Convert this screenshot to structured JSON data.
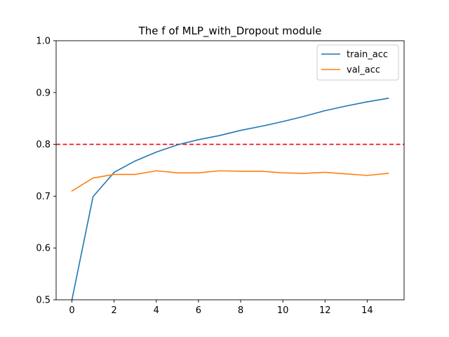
{
  "chart_data": {
    "type": "line",
    "title": "The f of MLP_with_Dropout module",
    "xlabel": "",
    "ylabel": "",
    "xlim": [
      -0.75,
      15.75
    ],
    "ylim": [
      0.5,
      1.0
    ],
    "xticks": [
      0,
      2,
      4,
      6,
      8,
      10,
      12,
      14
    ],
    "yticks": [
      0.5,
      0.6,
      0.7,
      0.8,
      0.9,
      1.0
    ],
    "grid": false,
    "legend_position": "top-right",
    "x": [
      0,
      1,
      2,
      3,
      4,
      5,
      6,
      7,
      8,
      9,
      10,
      11,
      12,
      13,
      14,
      15
    ],
    "series": [
      {
        "name": "train_acc",
        "color": "#1f77b4",
        "values": [
          0.5,
          0.699,
          0.746,
          0.768,
          0.785,
          0.799,
          0.809,
          0.817,
          0.827,
          0.835,
          0.844,
          0.854,
          0.865,
          0.874,
          0.882,
          0.889
        ]
      },
      {
        "name": "val_acc",
        "color": "#ff7f0e",
        "values": [
          0.71,
          0.735,
          0.742,
          0.742,
          0.749,
          0.745,
          0.745,
          0.749,
          0.748,
          0.748,
          0.745,
          0.744,
          0.746,
          0.743,
          0.74,
          0.744
        ]
      }
    ],
    "reference_line": {
      "y": 0.8,
      "color": "#ff0000",
      "style": "dashed"
    }
  }
}
